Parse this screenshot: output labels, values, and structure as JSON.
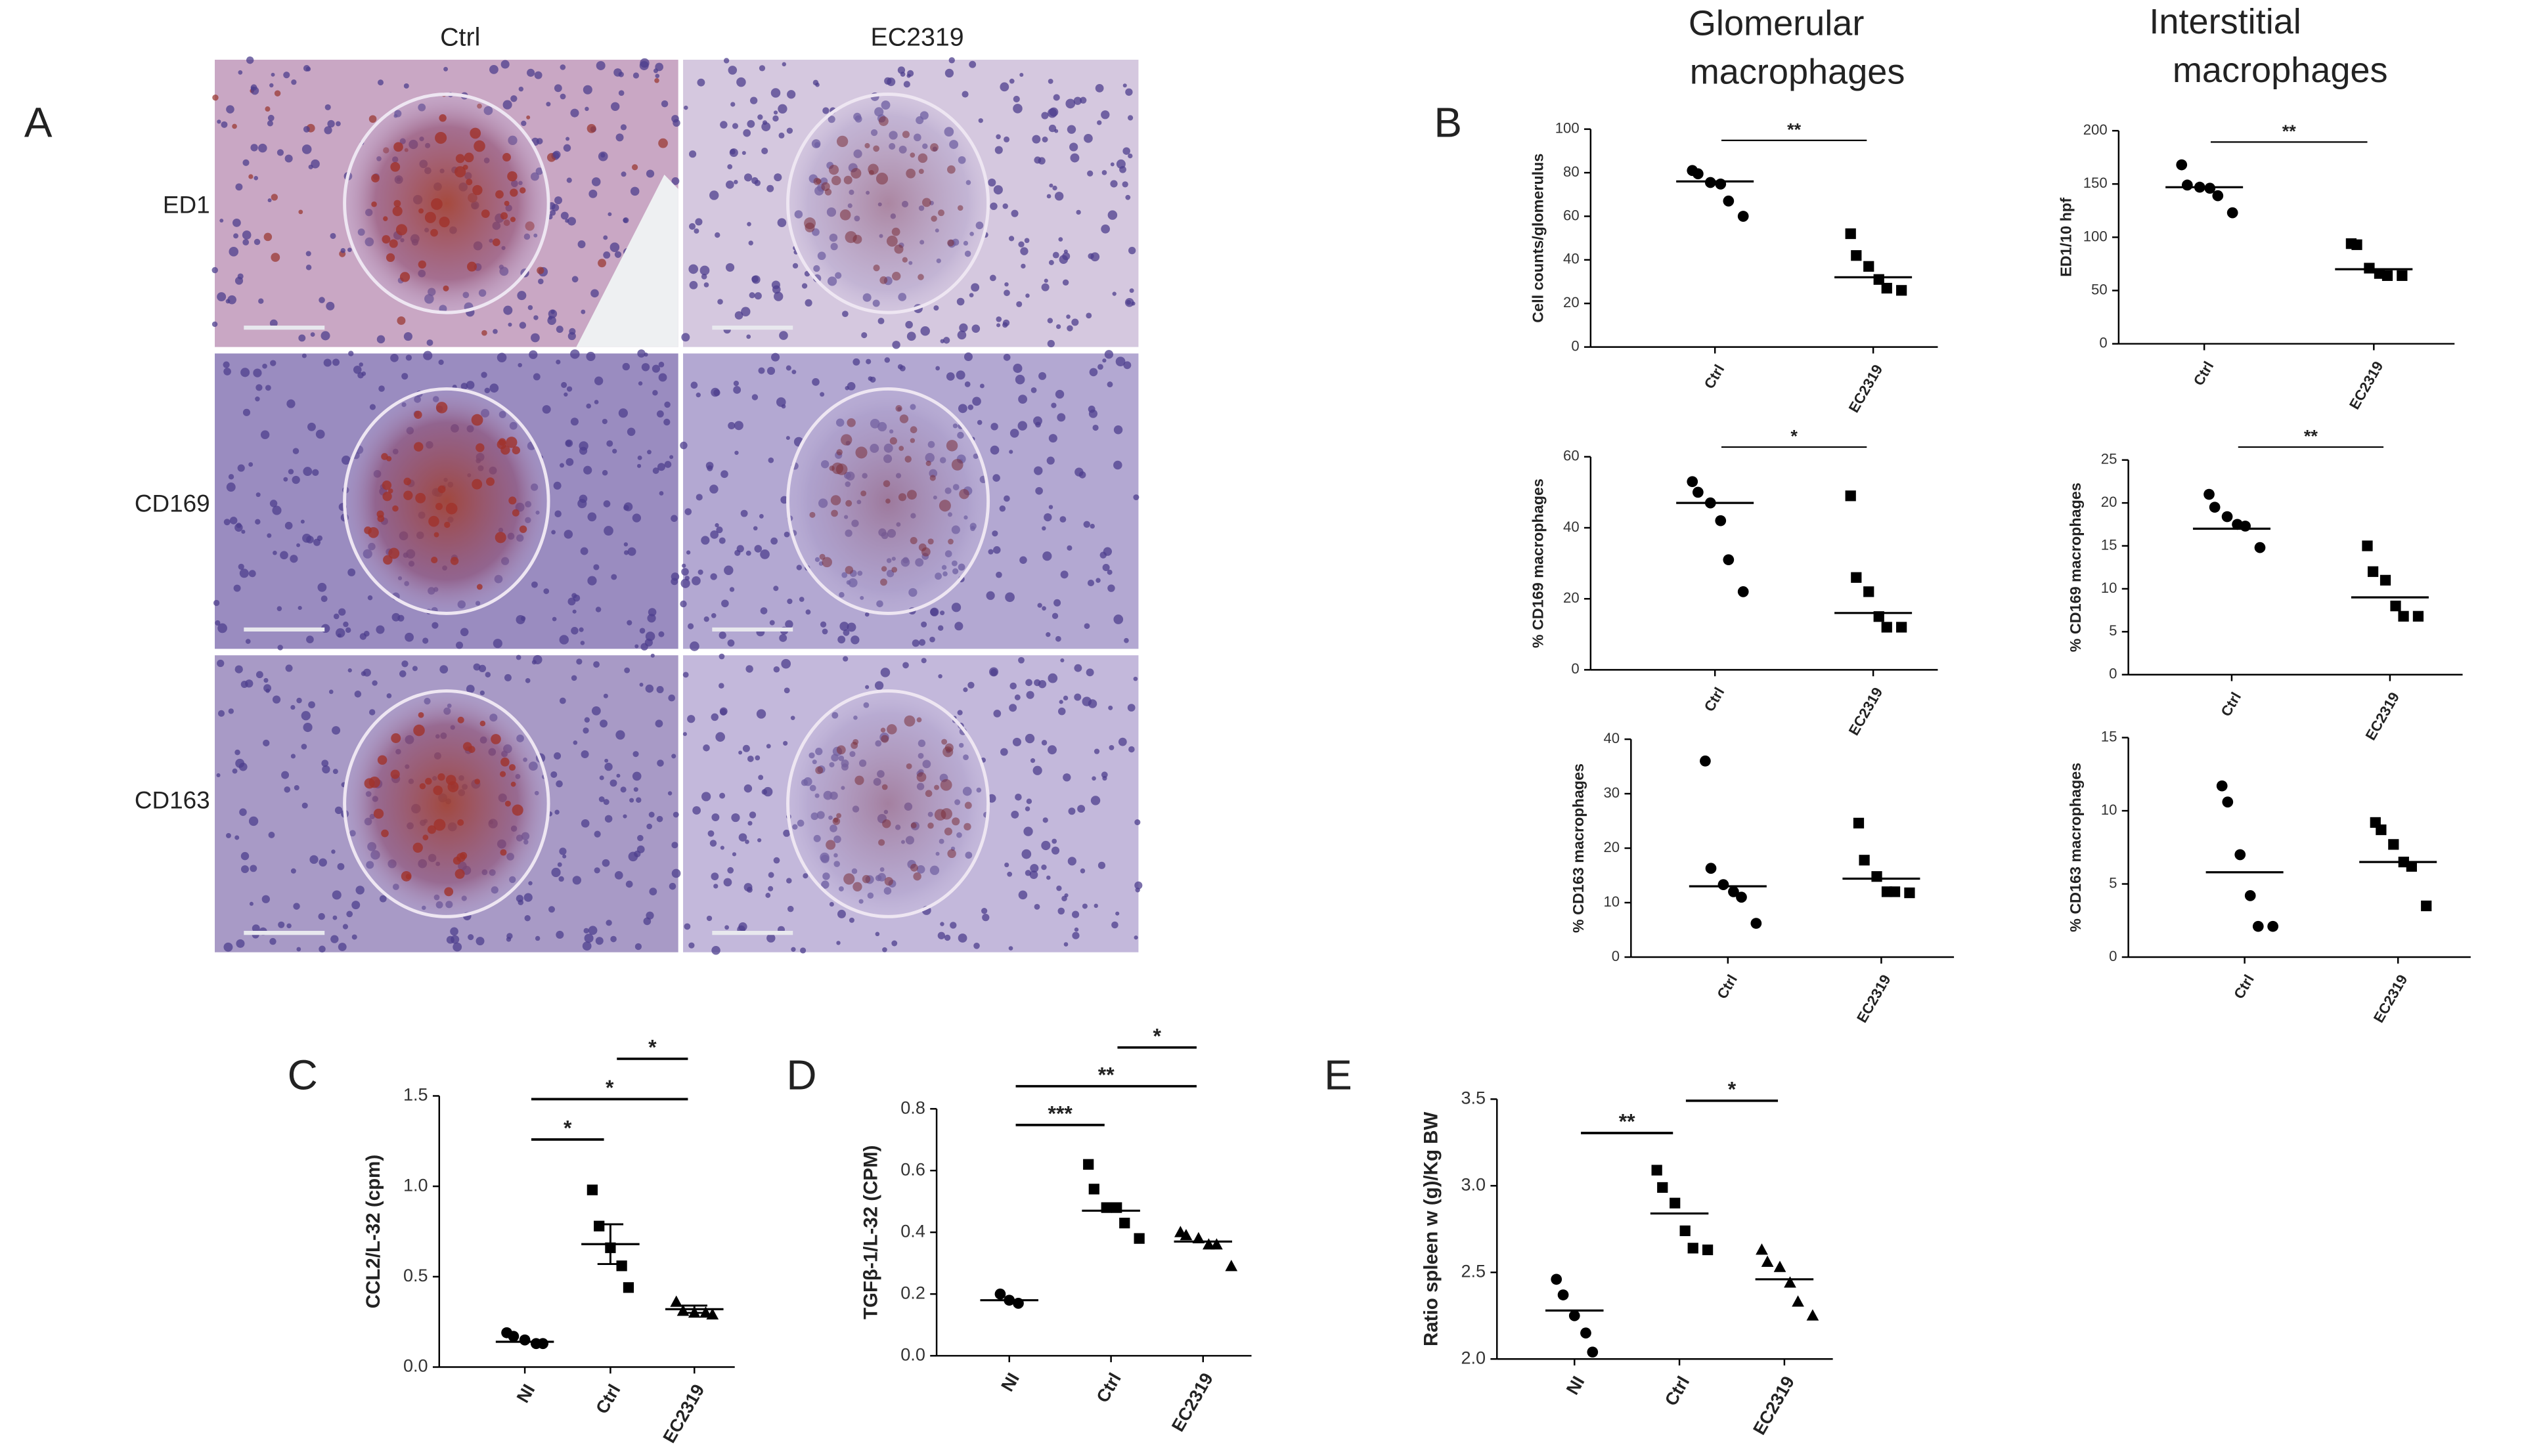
{
  "figure": {
    "panel_labels": [
      "A",
      "B",
      "C",
      "D",
      "E"
    ],
    "columns": [
      "Ctrl",
      "EC2319"
    ],
    "stains": [
      "ED1",
      "CD169",
      "CD163"
    ],
    "column_titles": [
      [
        "Glomerular",
        "macrophages"
      ],
      [
        "Interstitial",
        "macrophages"
      ]
    ]
  },
  "chart_data": [
    {
      "type": "dotplot",
      "ylabel": "Cell counts/glomerulus",
      "categories": [
        "Ctrl",
        "EC2319"
      ],
      "markers": [
        "circle",
        "square"
      ],
      "values": [
        [
          81,
          79.5,
          75.5,
          74.8,
          67,
          60
        ],
        [
          52,
          42,
          37,
          31,
          27,
          26
        ]
      ],
      "means": [
        76,
        32
      ],
      "ylim": [
        0,
        100
      ],
      "yticks": [
        0,
        20,
        40,
        60,
        80,
        100
      ],
      "significance": [
        {
          "label": "**",
          "between": [
            0,
            1
          ]
        }
      ]
    },
    {
      "type": "dotplot",
      "ylabel": "ED1/10 hpf",
      "categories": [
        "Ctrl",
        "EC2319"
      ],
      "markers": [
        "circle",
        "square"
      ],
      "values": [
        [
          168,
          149,
          147,
          146,
          139,
          123
        ],
        [
          94,
          93,
          71,
          66,
          64,
          64
        ]
      ],
      "means": [
        147,
        70
      ],
      "ylim": [
        0,
        200
      ],
      "yticks": [
        0,
        50,
        100,
        150,
        200
      ],
      "significance": [
        {
          "label": "**",
          "between": [
            0,
            1
          ]
        }
      ]
    },
    {
      "type": "dotplot",
      "ylabel": "% CD169 macrophages",
      "categories": [
        "Ctrl",
        "EC2319"
      ],
      "markers": [
        "circle",
        "square"
      ],
      "values": [
        [
          53,
          50,
          47,
          42,
          31,
          22
        ],
        [
          49,
          26,
          22,
          15,
          12,
          12
        ]
      ],
      "means": [
        47,
        16
      ],
      "ylim": [
        0,
        60
      ],
      "yticks": [
        0,
        20,
        40,
        60
      ],
      "significance": [
        {
          "label": "*",
          "between": [
            0,
            1
          ]
        }
      ]
    },
    {
      "type": "dotplot",
      "ylabel": "% CD169 macrophages",
      "categories": [
        "Ctrl",
        "EC2319"
      ],
      "markers": [
        "circle",
        "square"
      ],
      "values": [
        [
          21,
          19.5,
          18.4,
          17.5,
          17.3,
          14.8
        ],
        [
          15,
          12,
          11,
          8,
          6.8,
          6.8
        ]
      ],
      "means": [
        17,
        9
      ],
      "ylim": [
        0,
        25
      ],
      "yticks": [
        0,
        5,
        10,
        15,
        20,
        25
      ],
      "significance": [
        {
          "label": "**",
          "between": [
            0,
            1
          ]
        }
      ]
    },
    {
      "type": "dotplot",
      "ylabel": "% CD163 macrophages",
      "categories": [
        "Ctrl",
        "EC2319"
      ],
      "markers": [
        "circle",
        "square"
      ],
      "values": [
        [
          36,
          16.3,
          13.3,
          12,
          11,
          6.2
        ],
        [
          24.6,
          17.8,
          14.8,
          12,
          12,
          11.8
        ]
      ],
      "means": [
        13,
        14.4
      ],
      "ylim": [
        0,
        40
      ],
      "yticks": [
        0,
        10,
        20,
        30,
        40
      ],
      "significance": []
    },
    {
      "type": "dotplot",
      "ylabel": "% CD163 macrophages",
      "categories": [
        "Ctrl",
        "EC2319"
      ],
      "markers": [
        "circle",
        "square"
      ],
      "values": [
        [
          11.7,
          10.6,
          7,
          4.2,
          2.1,
          2.1
        ],
        [
          9.2,
          8.7,
          7.7,
          6.5,
          6.2,
          3.5
        ]
      ],
      "means": [
        5.8,
        6.5
      ],
      "ylim": [
        0,
        15
      ],
      "yticks": [
        0,
        5,
        10,
        15
      ],
      "significance": []
    },
    {
      "type": "dotplot",
      "ylabel": "CCL2/L-32 (cpm)",
      "categories": [
        "NI",
        "Ctrl",
        "EC2319"
      ],
      "markers": [
        "circle",
        "square",
        "triangle"
      ],
      "values": [
        [
          0.19,
          0.17,
          0.15,
          0.13,
          0.13
        ],
        [
          0.98,
          0.78,
          0.66,
          0.56,
          0.44
        ],
        [
          0.36,
          0.31,
          0.3,
          0.3,
          0.29
        ]
      ],
      "means": [
        0.14,
        0.68,
        0.32
      ],
      "errors": [
        null,
        0.11,
        0.02
      ],
      "ylim": [
        0,
        1.5
      ],
      "yticks": [
        {
          "value": 0,
          "label": "0.0"
        },
        0.5,
        {
          "value": 1,
          "label": "1.0"
        },
        1.5
      ],
      "significance": [
        {
          "label": "*",
          "between": [
            0,
            1
          ]
        },
        {
          "label": "*",
          "between": [
            0,
            2
          ]
        },
        {
          "label": "*",
          "between": [
            1,
            2
          ]
        }
      ]
    },
    {
      "type": "dotplot",
      "ylabel": "TGFβ-1/L-32 (CPM)",
      "categories": [
        "NI",
        "Ctrl",
        "EC2319"
      ],
      "markers": [
        "circle",
        "square",
        "triangle"
      ],
      "values": [
        [
          0.2,
          0.18,
          0.17
        ],
        [
          0.62,
          0.54,
          0.48,
          0.48,
          0.43,
          0.38
        ],
        [
          0.4,
          0.39,
          0.38,
          0.36,
          0.36,
          0.29
        ]
      ],
      "means": [
        0.18,
        0.47,
        0.37
      ],
      "ylim": [
        0,
        0.8
      ],
      "yticks": [
        {
          "value": 0,
          "label": "0.0"
        },
        0.2,
        0.4,
        0.6,
        0.8
      ],
      "significance": [
        {
          "label": "***",
          "between": [
            0,
            1
          ]
        },
        {
          "label": "**",
          "between": [
            0,
            2
          ]
        },
        {
          "label": "*",
          "between": [
            1,
            2
          ]
        }
      ]
    },
    {
      "type": "dotplot",
      "ylabel": "Ratio spleen w (g)/Kg BW",
      "categories": [
        "NI",
        "Ctrl",
        "EC2319"
      ],
      "markers": [
        "circle",
        "square",
        "triangle"
      ],
      "values": [
        [
          2.46,
          2.37,
          2.25,
          2.15,
          2.04
        ],
        [
          3.09,
          2.99,
          2.9,
          2.74,
          2.64,
          2.63
        ],
        [
          2.63,
          2.56,
          2.53,
          2.44,
          2.33,
          2.25
        ]
      ],
      "means": [
        2.28,
        2.84,
        2.46
      ],
      "ylim": [
        2,
        3.5
      ],
      "yticks": [
        {
          "value": 2,
          "label": "2.0"
        },
        2.5,
        {
          "value": 3,
          "label": "3.0"
        },
        3.5
      ],
      "significance": [
        {
          "label": "**",
          "between": [
            0,
            1
          ]
        },
        {
          "label": "*",
          "between": [
            1,
            2
          ]
        }
      ]
    }
  ]
}
